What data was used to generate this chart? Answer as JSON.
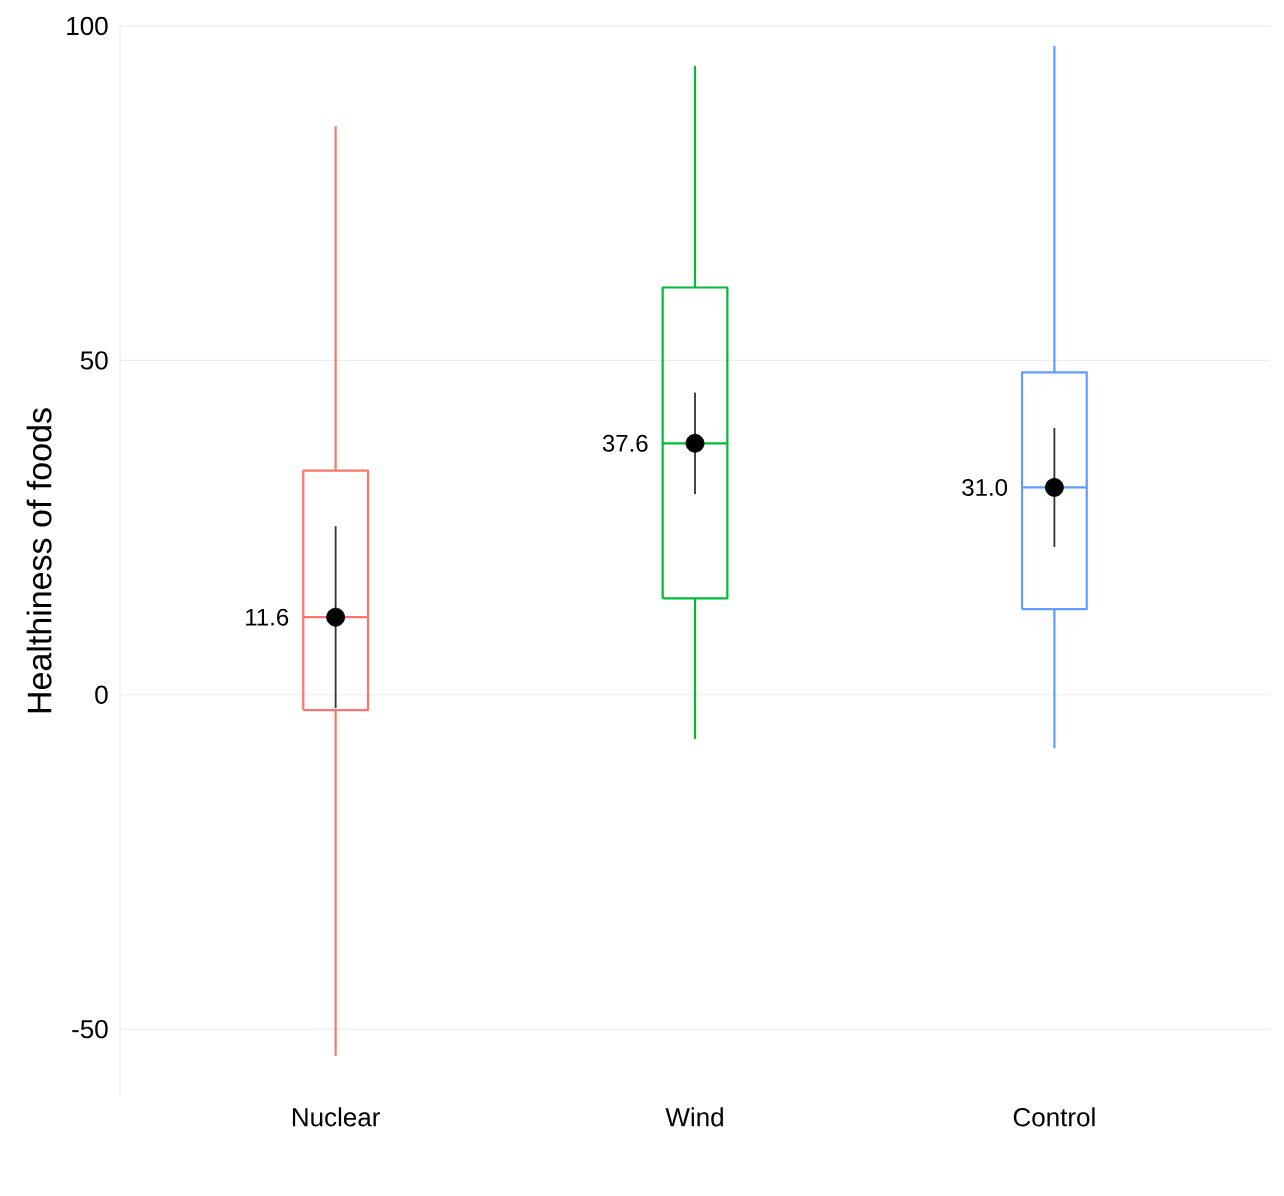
{
  "chart_data": {
    "type": "box",
    "ylabel": "Healthiness of foods",
    "categories": [
      "Nuclear",
      "Wind",
      "Control"
    ],
    "ylim": [
      -60,
      100
    ],
    "yticks": [
      -50,
      0,
      50,
      100
    ],
    "grid": "y",
    "series": [
      {
        "colors": [
          "#f8766d",
          "#00ba38",
          "#619cff"
        ],
        "boxes": [
          {
            "low": -54,
            "q1": -2.3,
            "median": 11.6,
            "q3": 33.5,
            "high": 85
          },
          {
            "low": -6.6,
            "q1": 14.4,
            "median": 37.6,
            "q3": 60.9,
            "high": 94
          },
          {
            "low": -8,
            "q1": 12.8,
            "median": 31.0,
            "q3": 48.2,
            "high": 97
          }
        ]
      },
      {
        "type": "scatter",
        "color": "#000000",
        "marker": "circle",
        "x": [
          "Nuclear",
          "Wind",
          "Control"
        ],
        "values": [
          11.6,
          37.6,
          31.0
        ],
        "errors": [
          13.6,
          7.6,
          8.9
        ],
        "value_labels": [
          "11.6",
          "37.6",
          "31.0"
        ]
      }
    ]
  }
}
